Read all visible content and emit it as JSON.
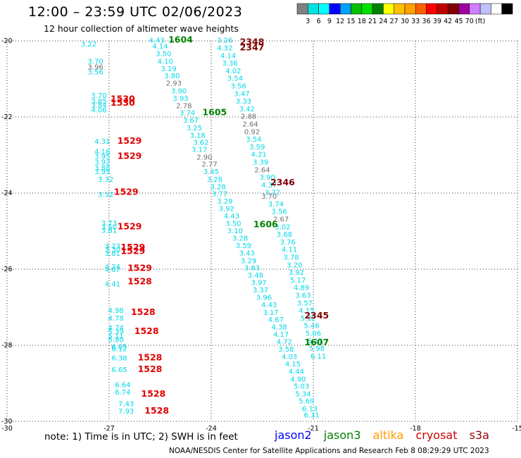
{
  "header": {
    "title": "12:00 – 23:59 UTC 02/06/2023",
    "subtitle": "12 hour collection of altimeter wave heights"
  },
  "color_scale": {
    "colors": [
      "#808080",
      "#00e0e0",
      "#00ffff",
      "#0000ff",
      "#00a0ff",
      "#00c000",
      "#00e000",
      "#008000",
      "#ffff00",
      "#ffc000",
      "#ffa000",
      "#ff6000",
      "#ff0000",
      "#c00000",
      "#800000",
      "#a000a0",
      "#d080ff",
      "#c0c0ff",
      "#ffffff",
      "#000000"
    ],
    "labels": [
      "3",
      "6",
      "9",
      "12",
      "15",
      "18",
      "21",
      "24",
      "27",
      "30",
      "33",
      "36",
      "39",
      "42",
      "45",
      "70",
      "(ft)"
    ]
  },
  "footer": {
    "note": "note:  1) Time is in UTC;  2) SWH is in feet",
    "satellites": [
      {
        "name": "jason2",
        "color": "#0000ff"
      },
      {
        "name": "jason3",
        "color": "#008000"
      },
      {
        "name": "altika",
        "color": "#ff9900"
      },
      {
        "name": "cryosat",
        "color": "#cc0000"
      },
      {
        "name": "s3a",
        "color": "#990000"
      }
    ],
    "credit": "NOAA/NESDIS Center for Satellite Applications and Research    Feb  8 08:29:29 UTC 2023"
  },
  "chart_data": {
    "type": "scatter",
    "title": "12:00 – 23:59 UTC 02/06/2023",
    "subtitle": "12 hour collection of altimeter wave heights",
    "xlabel": "",
    "ylabel": "",
    "xlim": [
      -30,
      -15
    ],
    "ylim": [
      -30,
      -20
    ],
    "x_ticks": [
      -30,
      -27,
      -24,
      -21,
      -18,
      -15
    ],
    "y_ticks": [
      -20,
      -22,
      -24,
      -26,
      -28,
      -30
    ],
    "grid": true,
    "colors": {
      "cyan": "#00d8e8",
      "gray": "#707070",
      "red": "#e00000",
      "green": "#008000",
      "maroon": "#800000"
    },
    "time_labels": [
      {
        "text": "1604",
        "x": -24.9,
        "y": -20.05,
        "color": "green"
      },
      {
        "text": "1605",
        "x": -23.9,
        "y": -21.95,
        "color": "green"
      },
      {
        "text": "1606",
        "x": -22.4,
        "y": -24.9,
        "color": "green"
      },
      {
        "text": "1607",
        "x": -20.9,
        "y": -28.0,
        "color": "green"
      },
      {
        "text": "2348",
        "x": -22.8,
        "y": -20.1,
        "color": "maroon"
      },
      {
        "text": "2347",
        "x": -22.8,
        "y": -20.25,
        "color": "maroon"
      },
      {
        "text": "2346",
        "x": -21.9,
        "y": -23.8,
        "color": "maroon"
      },
      {
        "text": "2345",
        "x": -20.9,
        "y": -27.3,
        "color": "maroon"
      },
      {
        "text": "1530",
        "x": -26.6,
        "y": -21.6,
        "color": "red"
      },
      {
        "text": "1530",
        "x": -26.6,
        "y": -21.7,
        "color": "red"
      },
      {
        "text": "1529",
        "x": -26.4,
        "y": -22.7,
        "color": "red"
      },
      {
        "text": "1529",
        "x": -26.4,
        "y": -23.1,
        "color": "red"
      },
      {
        "text": "1529",
        "x": -26.5,
        "y": -24.05,
        "color": "red"
      },
      {
        "text": "1529",
        "x": -26.4,
        "y": -24.95,
        "color": "red"
      },
      {
        "text": "1529",
        "x": -26.3,
        "y": -25.5,
        "color": "red"
      },
      {
        "text": "1529",
        "x": -26.3,
        "y": -25.6,
        "color": "red"
      },
      {
        "text": "1529",
        "x": -26.1,
        "y": -26.05,
        "color": "red"
      },
      {
        "text": "1528",
        "x": -26.1,
        "y": -26.4,
        "color": "red"
      },
      {
        "text": "1528",
        "x": -26.0,
        "y": -27.2,
        "color": "red"
      },
      {
        "text": "1528",
        "x": -25.9,
        "y": -27.7,
        "color": "red"
      },
      {
        "text": "1528",
        "x": -25.8,
        "y": -28.4,
        "color": "red"
      },
      {
        "text": "1528",
        "x": -25.8,
        "y": -28.7,
        "color": "red"
      },
      {
        "text": "1528",
        "x": -25.7,
        "y": -29.35,
        "color": "red"
      },
      {
        "text": "1528",
        "x": -25.6,
        "y": -29.8,
        "color": "red"
      }
    ],
    "wave_heights": [
      {
        "v": "3.22",
        "x": -27.6,
        "y": -20.15,
        "c": "cyan"
      },
      {
        "v": "3.70",
        "x": -27.4,
        "y": -20.6,
        "c": "cyan"
      },
      {
        "v": "3.96",
        "x": -27.4,
        "y": -20.75,
        "c": "gray"
      },
      {
        "v": "3.56",
        "x": -27.4,
        "y": -20.88,
        "c": "cyan"
      },
      {
        "v": "3.70",
        "x": -27.3,
        "y": -21.5,
        "c": "cyan"
      },
      {
        "v": "3.85",
        "x": -27.3,
        "y": -21.65,
        "c": "cyan"
      },
      {
        "v": "3.84",
        "x": -27.3,
        "y": -21.75,
        "c": "cyan"
      },
      {
        "v": "4.06",
        "x": -27.3,
        "y": -21.88,
        "c": "cyan"
      },
      {
        "v": "4.31",
        "x": -27.2,
        "y": -22.7,
        "c": "cyan"
      },
      {
        "v": "4.16",
        "x": -27.2,
        "y": -22.97,
        "c": "cyan"
      },
      {
        "v": "3.95",
        "x": -27.2,
        "y": -23.1,
        "c": "cyan"
      },
      {
        "v": "3.92",
        "x": -27.2,
        "y": -23.25,
        "c": "cyan"
      },
      {
        "v": "3.88",
        "x": -27.2,
        "y": -23.4,
        "c": "cyan"
      },
      {
        "v": "3.95",
        "x": -27.2,
        "y": -23.5,
        "c": "cyan"
      },
      {
        "v": "3.32",
        "x": -27.1,
        "y": -23.7,
        "c": "cyan"
      },
      {
        "v": "3.52",
        "x": -27.1,
        "y": -24.1,
        "c": "cyan"
      },
      {
        "v": "3.73",
        "x": -27.0,
        "y": -24.85,
        "c": "cyan"
      },
      {
        "v": "3.50",
        "x": -27.0,
        "y": -24.95,
        "c": "cyan"
      },
      {
        "v": "3.81",
        "x": -27.0,
        "y": -25.05,
        "c": "cyan"
      },
      {
        "v": "3.23",
        "x": -26.9,
        "y": -25.45,
        "c": "cyan"
      },
      {
        "v": "3.30",
        "x": -26.9,
        "y": -25.55,
        "c": "cyan"
      },
      {
        "v": "3.81",
        "x": -26.9,
        "y": -25.65,
        "c": "cyan"
      },
      {
        "v": "4.24",
        "x": -26.9,
        "y": -26.0,
        "c": "cyan"
      },
      {
        "v": "4.07",
        "x": -26.9,
        "y": -26.07,
        "c": "cyan"
      },
      {
        "v": "4.41",
        "x": -26.9,
        "y": -26.45,
        "c": "cyan"
      },
      {
        "v": "4.98",
        "x": -26.8,
        "y": -27.15,
        "c": "cyan"
      },
      {
        "v": "4.78",
        "x": -26.8,
        "y": -27.35,
        "c": "cyan"
      },
      {
        "v": "4.74",
        "x": -26.8,
        "y": -27.6,
        "c": "cyan"
      },
      {
        "v": "5.39",
        "x": -26.8,
        "y": -27.7,
        "c": "cyan"
      },
      {
        "v": "5.11",
        "x": -26.8,
        "y": -27.82,
        "c": "cyan"
      },
      {
        "v": "5.80",
        "x": -26.8,
        "y": -27.92,
        "c": "cyan"
      },
      {
        "v": "6.05",
        "x": -26.7,
        "y": -28.1,
        "c": "cyan"
      },
      {
        "v": "6.12",
        "x": -26.7,
        "y": -28.16,
        "c": "cyan"
      },
      {
        "v": "6.38",
        "x": -26.7,
        "y": -28.4,
        "c": "cyan"
      },
      {
        "v": "6.65",
        "x": -26.7,
        "y": -28.7,
        "c": "cyan"
      },
      {
        "v": "6.64",
        "x": -26.6,
        "y": -29.1,
        "c": "cyan"
      },
      {
        "v": "6.74",
        "x": -26.6,
        "y": -29.3,
        "c": "cyan"
      },
      {
        "v": "7.43",
        "x": -26.5,
        "y": -29.6,
        "c": "cyan"
      },
      {
        "v": "7.93",
        "x": -26.5,
        "y": -29.8,
        "c": "cyan"
      },
      {
        "v": "4.43",
        "x": -25.6,
        "y": -20.05,
        "c": "cyan"
      },
      {
        "v": "4.14",
        "x": -25.5,
        "y": -20.2,
        "c": "cyan"
      },
      {
        "v": "3.50",
        "x": -25.4,
        "y": -20.4,
        "c": "cyan"
      },
      {
        "v": "4.10",
        "x": -25.35,
        "y": -20.6,
        "c": "cyan"
      },
      {
        "v": "3.19",
        "x": -25.25,
        "y": -20.8,
        "c": "cyan"
      },
      {
        "v": "3.80",
        "x": -25.15,
        "y": -20.98,
        "c": "cyan"
      },
      {
        "v": "2.93",
        "x": -25.1,
        "y": -21.18,
        "c": "gray"
      },
      {
        "v": "3.90",
        "x": -24.95,
        "y": -21.38,
        "c": "cyan"
      },
      {
        "v": "3.93",
        "x": -24.9,
        "y": -21.57,
        "c": "cyan"
      },
      {
        "v": "2.78",
        "x": -24.8,
        "y": -21.77,
        "c": "gray"
      },
      {
        "v": "3.74",
        "x": -24.7,
        "y": -21.95,
        "c": "cyan"
      },
      {
        "v": "3.67",
        "x": -24.6,
        "y": -22.15,
        "c": "cyan"
      },
      {
        "v": "3.25",
        "x": -24.5,
        "y": -22.35,
        "c": "cyan"
      },
      {
        "v": "3.18",
        "x": -24.4,
        "y": -22.55,
        "c": "cyan"
      },
      {
        "v": "3.62",
        "x": -24.3,
        "y": -22.73,
        "c": "cyan"
      },
      {
        "v": "3.17",
        "x": -24.35,
        "y": -22.92,
        "c": "cyan"
      },
      {
        "v": "2.90",
        "x": -24.2,
        "y": -23.12,
        "c": "gray"
      },
      {
        "v": "2.77",
        "x": -24.05,
        "y": -23.31,
        "c": "gray"
      },
      {
        "v": "3.45",
        "x": -24.0,
        "y": -23.5,
        "c": "cyan"
      },
      {
        "v": "3.28",
        "x": -23.9,
        "y": -23.7,
        "c": "cyan"
      },
      {
        "v": "3.28",
        "x": -23.8,
        "y": -23.9,
        "c": "cyan"
      },
      {
        "v": "3.77",
        "x": -23.75,
        "y": -24.08,
        "c": "cyan"
      },
      {
        "v": "3.29",
        "x": -23.6,
        "y": -24.28,
        "c": "cyan"
      },
      {
        "v": "3.92",
        "x": -23.55,
        "y": -24.47,
        "c": "cyan"
      },
      {
        "v": "4.43",
        "x": -23.4,
        "y": -24.67,
        "c": "cyan"
      },
      {
        "v": "3.50",
        "x": -23.35,
        "y": -24.86,
        "c": "cyan"
      },
      {
        "v": "3.10",
        "x": -23.3,
        "y": -25.06,
        "c": "cyan"
      },
      {
        "v": "3.28",
        "x": -23.15,
        "y": -25.25,
        "c": "cyan"
      },
      {
        "v": "3.59",
        "x": -23.05,
        "y": -25.44,
        "c": "cyan"
      },
      {
        "v": "3.43",
        "x": -22.95,
        "y": -25.64,
        "c": "cyan"
      },
      {
        "v": "3.29",
        "x": -22.9,
        "y": -25.84,
        "c": "cyan"
      },
      {
        "v": "3.83",
        "x": -22.8,
        "y": -26.03,
        "c": "cyan"
      },
      {
        "v": "3.48",
        "x": -22.7,
        "y": -26.22,
        "c": "cyan"
      },
      {
        "v": "3.97",
        "x": -22.6,
        "y": -26.42,
        "c": "cyan"
      },
      {
        "v": "3.37",
        "x": -22.55,
        "y": -26.61,
        "c": "cyan"
      },
      {
        "v": "3.96",
        "x": -22.45,
        "y": -26.81,
        "c": "cyan"
      },
      {
        "v": "4.43",
        "x": -22.3,
        "y": -27.0,
        "c": "cyan"
      },
      {
        "v": "3.17",
        "x": -22.25,
        "y": -27.2,
        "c": "cyan"
      },
      {
        "v": "4.67",
        "x": -22.1,
        "y": -27.39,
        "c": "cyan"
      },
      {
        "v": "4.38",
        "x": -22.0,
        "y": -27.58,
        "c": "cyan"
      },
      {
        "v": "4.17",
        "x": -21.95,
        "y": -27.78,
        "c": "cyan"
      },
      {
        "v": "4.72",
        "x": -21.85,
        "y": -27.97,
        "c": "cyan"
      },
      {
        "v": "3.58",
        "x": -21.8,
        "y": -28.17,
        "c": "cyan"
      },
      {
        "v": "4.03",
        "x": -21.7,
        "y": -28.36,
        "c": "cyan"
      },
      {
        "v": "4.15",
        "x": -21.6,
        "y": -28.56,
        "c": "cyan"
      },
      {
        "v": "4.44",
        "x": -21.5,
        "y": -28.75,
        "c": "cyan"
      },
      {
        "v": "4.90",
        "x": -21.45,
        "y": -28.95,
        "c": "cyan"
      },
      {
        "v": "5.03",
        "x": -21.35,
        "y": -29.14,
        "c": "cyan"
      },
      {
        "v": "5.34",
        "x": -21.3,
        "y": -29.34,
        "c": "cyan"
      },
      {
        "v": "5.69",
        "x": -21.2,
        "y": -29.53,
        "c": "cyan"
      },
      {
        "v": "6.13",
        "x": -21.1,
        "y": -29.73,
        "c": "cyan"
      },
      {
        "v": "6.31",
        "x": -21.05,
        "y": -29.9,
        "c": "cyan"
      },
      {
        "v": "3.26",
        "x": -23.6,
        "y": -20.05,
        "c": "cyan"
      },
      {
        "v": "4.32",
        "x": -23.6,
        "y": -20.25,
        "c": "cyan"
      },
      {
        "v": "4.14",
        "x": -23.5,
        "y": -20.45,
        "c": "cyan"
      },
      {
        "v": "3.36",
        "x": -23.45,
        "y": -20.65,
        "c": "cyan"
      },
      {
        "v": "4.02",
        "x": -23.35,
        "y": -20.85,
        "c": "cyan"
      },
      {
        "v": "3.54",
        "x": -23.3,
        "y": -21.05,
        "c": "cyan"
      },
      {
        "v": "3.56",
        "x": -23.2,
        "y": -21.25,
        "c": "cyan"
      },
      {
        "v": "3.47",
        "x": -23.1,
        "y": -21.45,
        "c": "cyan"
      },
      {
        "v": "3.33",
        "x": -23.05,
        "y": -21.65,
        "c": "cyan"
      },
      {
        "v": "3.42",
        "x": -22.95,
        "y": -21.85,
        "c": "cyan"
      },
      {
        "v": "2.88",
        "x": -22.9,
        "y": -22.05,
        "c": "gray"
      },
      {
        "v": "2.64",
        "x": -22.85,
        "y": -22.25,
        "c": "gray"
      },
      {
        "v": "0.92",
        "x": -22.8,
        "y": -22.45,
        "c": "gray"
      },
      {
        "v": "3.54",
        "x": -22.75,
        "y": -22.65,
        "c": "cyan"
      },
      {
        "v": "3.59",
        "x": -22.65,
        "y": -22.85,
        "c": "cyan"
      },
      {
        "v": "4.21",
        "x": -22.6,
        "y": -23.05,
        "c": "cyan"
      },
      {
        "v": "3.39",
        "x": -22.55,
        "y": -23.25,
        "c": "cyan"
      },
      {
        "v": "2.64",
        "x": -22.5,
        "y": -23.45,
        "c": "gray"
      },
      {
        "v": "3.90",
        "x": -22.35,
        "y": -23.65,
        "c": "cyan"
      },
      {
        "v": "4.37",
        "x": -22.3,
        "y": -23.85,
        "c": "cyan"
      },
      {
        "v": "3.72",
        "x": -22.2,
        "y": -24.05,
        "c": "cyan"
      },
      {
        "v": "3.70",
        "x": -22.3,
        "y": -24.15,
        "c": "gray"
      },
      {
        "v": "3.74",
        "x": -22.1,
        "y": -24.35,
        "c": "cyan"
      },
      {
        "v": "3.56",
        "x": -22.0,
        "y": -24.55,
        "c": "cyan"
      },
      {
        "v": "2.67",
        "x": -21.95,
        "y": -24.75,
        "c": "gray"
      },
      {
        "v": "3.02",
        "x": -21.9,
        "y": -24.95,
        "c": "cyan"
      },
      {
        "v": "3.68",
        "x": -21.85,
        "y": -25.15,
        "c": "cyan"
      },
      {
        "v": "3.76",
        "x": -21.75,
        "y": -25.35,
        "c": "cyan"
      },
      {
        "v": "4.11",
        "x": -21.7,
        "y": -25.55,
        "c": "cyan"
      },
      {
        "v": "3.78",
        "x": -21.65,
        "y": -25.75,
        "c": "cyan"
      },
      {
        "v": "3.20",
        "x": -21.55,
        "y": -25.95,
        "c": "cyan"
      },
      {
        "v": "3.92",
        "x": -21.5,
        "y": -26.15,
        "c": "cyan"
      },
      {
        "v": "5.17",
        "x": -21.45,
        "y": -26.35,
        "c": "cyan"
      },
      {
        "v": "4.89",
        "x": -21.35,
        "y": -26.55,
        "c": "cyan"
      },
      {
        "v": "3.63",
        "x": -21.3,
        "y": -26.75,
        "c": "cyan"
      },
      {
        "v": "3.57",
        "x": -21.25,
        "y": -26.95,
        "c": "cyan"
      },
      {
        "v": "4.15",
        "x": -21.2,
        "y": -27.15,
        "c": "cyan"
      },
      {
        "v": "5.22",
        "x": -21.15,
        "y": -27.35,
        "c": "cyan"
      },
      {
        "v": "5.46",
        "x": -21.05,
        "y": -27.55,
        "c": "cyan"
      },
      {
        "v": "5.06",
        "x": -21.0,
        "y": -27.75,
        "c": "cyan"
      },
      {
        "v": "5.17",
        "x": -20.95,
        "y": -27.95,
        "c": "cyan"
      },
      {
        "v": "5.98",
        "x": -20.9,
        "y": -28.15,
        "c": "cyan"
      },
      {
        "v": "6.11",
        "x": -20.85,
        "y": -28.35,
        "c": "cyan"
      }
    ]
  }
}
